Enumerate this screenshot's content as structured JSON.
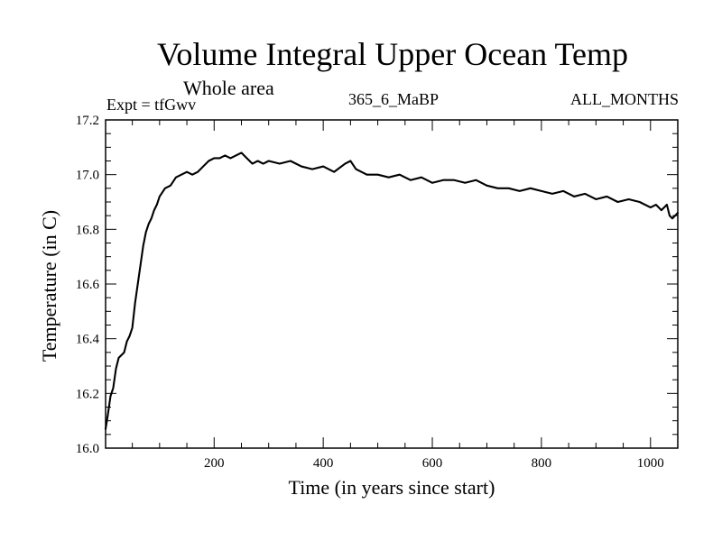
{
  "chart_data": {
    "type": "line",
    "title": "Volume Integral Upper Ocean Temp",
    "subtitle": "Whole area",
    "annotations": {
      "left": "Expt = tfGwv",
      "center": "365_6_MaBP",
      "right": "ALL_MONTHS"
    },
    "xlabel": "Time (in years since start)",
    "ylabel": "Temperature (in C)",
    "xlim": [
      1,
      1050
    ],
    "ylim": [
      16.0,
      17.2
    ],
    "xticks": [
      200,
      400,
      600,
      800,
      1000
    ],
    "yticks": [
      16.0,
      16.2,
      16.4,
      16.6,
      16.8,
      17.0,
      17.2
    ],
    "ytick_labels": [
      "16.0",
      "16.2",
      "16.4",
      "16.6",
      "16.8",
      "17.0",
      "17.2"
    ],
    "grid": false,
    "series": [
      {
        "name": "Volume Integral Upper Ocean Temp",
        "x": [
          1,
          5,
          10,
          15,
          20,
          25,
          30,
          35,
          40,
          45,
          50,
          55,
          60,
          65,
          70,
          75,
          80,
          85,
          90,
          95,
          100,
          110,
          120,
          130,
          140,
          150,
          160,
          170,
          180,
          190,
          200,
          210,
          220,
          230,
          240,
          250,
          260,
          270,
          280,
          290,
          300,
          320,
          340,
          360,
          380,
          400,
          420,
          440,
          450,
          460,
          480,
          500,
          520,
          540,
          560,
          580,
          600,
          620,
          640,
          660,
          680,
          700,
          720,
          740,
          760,
          780,
          800,
          820,
          840,
          860,
          880,
          900,
          920,
          940,
          960,
          980,
          1000,
          1010,
          1020,
          1030,
          1035,
          1040,
          1050
        ],
        "y": [
          16.07,
          16.12,
          16.19,
          16.22,
          16.29,
          16.33,
          16.34,
          16.35,
          16.39,
          16.41,
          16.44,
          16.53,
          16.6,
          16.67,
          16.74,
          16.79,
          16.82,
          16.84,
          16.87,
          16.89,
          16.92,
          16.95,
          16.96,
          16.99,
          17.0,
          17.01,
          17.0,
          17.01,
          17.03,
          17.05,
          17.06,
          17.06,
          17.07,
          17.06,
          17.07,
          17.08,
          17.06,
          17.04,
          17.05,
          17.04,
          17.05,
          17.04,
          17.05,
          17.03,
          17.02,
          17.03,
          17.01,
          17.04,
          17.05,
          17.02,
          17.0,
          17.0,
          16.99,
          17.0,
          16.98,
          16.99,
          16.97,
          16.98,
          16.98,
          16.97,
          16.98,
          16.96,
          16.95,
          16.95,
          16.94,
          16.95,
          16.94,
          16.93,
          16.94,
          16.92,
          16.93,
          16.91,
          16.92,
          16.9,
          16.91,
          16.9,
          16.88,
          16.89,
          16.87,
          16.89,
          16.85,
          16.84,
          16.86
        ]
      }
    ]
  }
}
